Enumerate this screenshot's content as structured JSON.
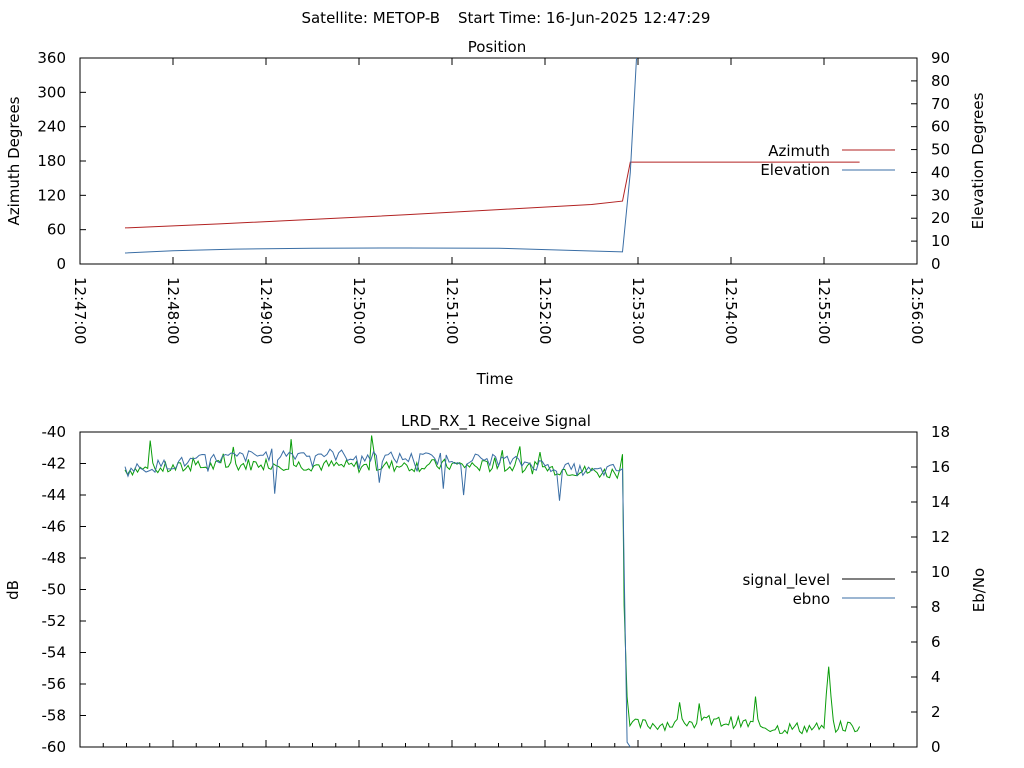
{
  "header": {
    "satellite": "Satellite: METOP-B",
    "start_time": "Start Time: 16-Jun-2025 12:47:29"
  },
  "colors": {
    "azimuth": "#b22222",
    "elevation": "#3a6ea5",
    "signal_level": "#a01010",
    "ebno_high": "#0a9d0a",
    "ebno_low": "#3a6ea5"
  },
  "chart_data": [
    {
      "type": "line",
      "title": "Position",
      "xlabel": "Time",
      "ylabel": "Azimuth Degrees",
      "y2label": "Elevation Degrees",
      "xlim": [
        "12:47:00",
        "12:56:00"
      ],
      "ylim": [
        0,
        360
      ],
      "y2lim": [
        0,
        90
      ],
      "x_ticks": [
        "12:47:00",
        "12:48:00",
        "12:49:00",
        "12:50:00",
        "12:51:00",
        "12:52:00",
        "12:53:00",
        "12:54:00",
        "12:55:00",
        "12:56:00"
      ],
      "y_ticks": [
        "0",
        "60",
        "120",
        "180",
        "240",
        "300",
        "360"
      ],
      "y2_ticks": [
        "0",
        "10",
        "20",
        "30",
        "40",
        "50",
        "60",
        "70",
        "80",
        "90"
      ],
      "legend_position": "right",
      "series": [
        {
          "name": "Azimuth",
          "axis": "left",
          "color": "#b22222",
          "x": [
            "12:47:29",
            "12:48:30",
            "12:49:30",
            "12:50:30",
            "12:51:30",
            "12:52:30",
            "12:52:50",
            "12:52:55",
            "12:53:00",
            "12:54:00",
            "12:55:00",
            "12:55:23"
          ],
          "y": [
            63,
            70,
            78,
            86,
            95,
            104,
            110,
            178,
            178,
            178,
            178,
            178
          ]
        },
        {
          "name": "Elevation",
          "axis": "right",
          "color": "#3a6ea5",
          "x": [
            "12:47:29",
            "12:48:00",
            "12:48:40",
            "12:49:30",
            "12:50:30",
            "12:51:30",
            "12:52:30",
            "12:52:50",
            "12:52:55",
            "12:52:59"
          ],
          "y": [
            4.8,
            5.8,
            6.5,
            6.9,
            7.0,
            6.9,
            5.7,
            5.3,
            40,
            90
          ]
        }
      ]
    },
    {
      "type": "line",
      "title": "LRD_RX_1 Receive Signal",
      "ylabel": "dB",
      "y2label": "Eb/No",
      "xlim": [
        "12:47:00",
        "12:56:00"
      ],
      "ylim": [
        -60,
        -40
      ],
      "y2lim": [
        0,
        18
      ],
      "y_ticks": [
        "-40",
        "-42",
        "-44",
        "-46",
        "-48",
        "-50",
        "-52",
        "-54",
        "-56",
        "-58",
        "-60"
      ],
      "y2_ticks": [
        "0",
        "2",
        "4",
        "6",
        "8",
        "10",
        "12",
        "14",
        "16",
        "18"
      ],
      "legend_position": "right",
      "series": [
        {
          "name": "signal_level",
          "axis": "left",
          "color": "#a01010",
          "x": [
            "12:47:29",
            "12:48:00",
            "12:49:00",
            "12:50:00",
            "12:51:00",
            "12:52:00",
            "12:52:40",
            "12:52:50",
            "12:52:51",
            "12:52:53",
            "12:53:00",
            "12:53:30",
            "12:54:00",
            "12:54:30",
            "12:55:00",
            "12:55:03",
            "12:55:06",
            "12:55:23"
          ],
          "y": [
            -42.4,
            -42.3,
            -42.0,
            -42.2,
            -42.1,
            -42.3,
            -42.6,
            -42.5,
            -51.0,
            -58.6,
            -58.6,
            -58.5,
            -58.4,
            -58.8,
            -58.8,
            -54.9,
            -58.7,
            -58.7
          ]
        },
        {
          "name": "ebno",
          "axis": "right",
          "color": "#3a6ea5",
          "x": [
            "12:47:29",
            "12:48:00",
            "12:48:30",
            "12:49:00",
            "12:49:30",
            "12:50:00",
            "12:50:30",
            "12:51:00",
            "12:51:30",
            "12:52:00",
            "12:52:30",
            "12:52:50",
            "12:52:53",
            "12:52:55"
          ],
          "y": [
            15.8,
            16.2,
            16.5,
            16.7,
            16.8,
            16.6,
            16.5,
            16.5,
            16.4,
            16.1,
            15.7,
            15.9,
            0,
            0
          ]
        }
      ]
    }
  ]
}
